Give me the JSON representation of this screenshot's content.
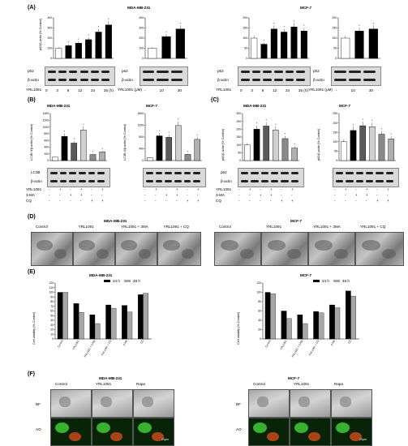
{
  "panels": {
    "A": {
      "letter": "(A)",
      "mda_title": "MDA-MB-231",
      "mcf_title": "MCF-7",
      "ylabel": "p62/β-actin (% Control)",
      "time_row_label": "YRL1091",
      "dose_row_label": "YRL1091 (μM)",
      "time_ticks": [
        "0",
        "3",
        "6",
        "12",
        "24",
        "36 (h)"
      ],
      "dose_ticks": [
        "-",
        "10",
        "30"
      ],
      "blot_p62": "p62",
      "blot_actin": "β-actin"
    },
    "B": {
      "letter": "(B)",
      "mda_title": "MDA-MB-231",
      "mcf_title": "MCF-7",
      "ylabel": "LC3B II/β-actin (% Control)",
      "blot_lc3": "LC3B",
      "blot_actin": "β-actin",
      "row_labels": [
        "YRL1091",
        "3-MA",
        "CQ"
      ],
      "signs": [
        [
          "-",
          "+",
          "-",
          "+",
          "-",
          "+"
        ],
        [
          "-",
          "-",
          "+",
          "+",
          "-",
          "-"
        ],
        [
          "-",
          "-",
          "-",
          "-",
          "+",
          "+"
        ]
      ]
    },
    "C": {
      "letter": "(C)",
      "mda_title": "MDA-MB-231",
      "mcf_title": "MCF-7",
      "ylabel": "p62/β-actin (% Control)",
      "blot_p62": "p62",
      "blot_actin": "β-actin",
      "row_labels": [
        "YRL1091",
        "3-MA",
        "CQ"
      ],
      "signs": [
        [
          "-",
          "+",
          "-",
          "+",
          "-",
          "+"
        ],
        [
          "-",
          "-",
          "+",
          "+",
          "-",
          "-"
        ],
        [
          "-",
          "-",
          "-",
          "-",
          "+",
          "+"
        ]
      ]
    },
    "D": {
      "letter": "(D)",
      "mda_title": "MDA-MB-231",
      "mcf_title": "MCF-7",
      "labels": [
        "Control",
        "YRL1091",
        "YRL1091 + 3MA",
        "YRL1091 + CQ"
      ]
    },
    "E": {
      "letter": "(E)",
      "mda_title": "MDA-MB-231",
      "mcf_title": "MCF-7",
      "ylabel": "Cell viability (% Control)",
      "legend": [
        "24 h",
        "48 h"
      ],
      "categories": [
        "Control",
        "YRL1091",
        "YRL1091 + 3-MA",
        "YRL1091 + CQ",
        "3-MA",
        "CQ"
      ]
    },
    "F": {
      "letter": "(F)",
      "mda_title": "MDA-MB-231",
      "mcf_title": "MCF-7",
      "col_labels": [
        "Control",
        "YRL1091",
        "Rapa"
      ],
      "row_labels": [
        "BF",
        "AO"
      ],
      "scale_label": "20μm"
    }
  },
  "chart_data": [
    {
      "id": "A-mda-time",
      "type": "bar",
      "categories": [
        "0",
        "3",
        "6",
        "12",
        "24",
        "36 (h)"
      ],
      "values": [
        100,
        125,
        150,
        185,
        260,
        330
      ],
      "ylim": [
        0,
        400
      ],
      "yticks": [
        0,
        100,
        200,
        300,
        400
      ],
      "sig": "*"
    },
    {
      "id": "A-mda-dose",
      "type": "bar",
      "categories": [
        "-",
        "10",
        "30"
      ],
      "values": [
        100,
        215,
        290
      ],
      "ylim": [
        0,
        400
      ],
      "yticks": [
        0,
        100,
        200,
        300,
        400
      ],
      "sig": "*"
    },
    {
      "id": "A-mcf-time",
      "type": "bar",
      "categories": [
        "0",
        "3",
        "6",
        "12",
        "24",
        "36 (h)"
      ],
      "values": [
        100,
        70,
        145,
        130,
        155,
        135
      ],
      "ylim": [
        0,
        200
      ],
      "yticks": [
        0,
        50,
        100,
        150,
        200
      ],
      "sig": "*"
    },
    {
      "id": "A-mcf-dose",
      "type": "bar",
      "categories": [
        "-",
        "10",
        "30"
      ],
      "values": [
        100,
        135,
        145
      ],
      "ylim": [
        0,
        200
      ],
      "yticks": [
        0,
        50,
        100,
        150,
        200
      ],
      "sig": "*"
    },
    {
      "id": "B-mda",
      "type": "bar",
      "categories": [
        "1",
        "2",
        "3",
        "4",
        "5",
        "6"
      ],
      "values": [
        100,
        720,
        520,
        910,
        180,
        260
      ],
      "ylim": [
        0,
        1400
      ],
      "yticks": [
        0,
        200,
        400,
        600,
        800,
        1000,
        1200,
        1400
      ],
      "sig": "*"
    },
    {
      "id": "B-mcf",
      "type": "bar",
      "categories": [
        "1",
        "2",
        "3",
        "4",
        "5",
        "6"
      ],
      "values": [
        100,
        840,
        790,
        1190,
        210,
        720
      ],
      "ylim": [
        0,
        1600
      ],
      "yticks": [
        0,
        400,
        800,
        1200,
        1600
      ],
      "sig": "*"
    },
    {
      "id": "C-mda",
      "type": "bar",
      "categories": [
        "1",
        "2",
        "3",
        "4",
        "5",
        "6"
      ],
      "values": [
        100,
        200,
        220,
        195,
        140,
        80
      ],
      "ylim": [
        0,
        300
      ],
      "yticks": [
        0,
        50,
        100,
        150,
        200,
        250,
        300
      ],
      "sig": "*"
    },
    {
      "id": "C-mcf",
      "type": "bar",
      "categories": [
        "1",
        "2",
        "3",
        "4",
        "5",
        "6"
      ],
      "values": [
        100,
        160,
        185,
        180,
        140,
        115
      ],
      "ylim": [
        0,
        250
      ],
      "yticks": [
        0,
        50,
        100,
        150,
        200,
        250
      ],
      "sig": "*"
    },
    {
      "id": "E-mda",
      "type": "bar",
      "categories": [
        "Control",
        "YRL1091",
        "YRL1091 + 3-MA",
        "YRL1091 + CQ",
        "3-MA",
        "CQ"
      ],
      "series": [
        {
          "name": "24 h",
          "values": [
            100,
            76,
            52,
            73,
            72,
            95
          ]
        },
        {
          "name": "48 h",
          "values": [
            100,
            57,
            33,
            66,
            58,
            98
          ]
        }
      ],
      "ylim": [
        0,
        120
      ],
      "yticks": [
        0,
        10,
        20,
        30,
        40,
        50,
        60,
        70,
        80,
        90,
        100,
        110,
        120
      ]
    },
    {
      "id": "E-mcf",
      "type": "bar",
      "categories": [
        "Control",
        "YRL1091",
        "YRL1091 + 3-MA",
        "YRL1091 + CQ",
        "3-MA",
        "CQ"
      ],
      "series": [
        {
          "name": "24 h",
          "values": [
            100,
            60,
            52,
            59,
            73,
            103
          ]
        },
        {
          "name": "48 h",
          "values": [
            97,
            44,
            33,
            56,
            67,
            92
          ]
        }
      ],
      "ylim": [
        0,
        120
      ],
      "yticks": [
        0,
        20,
        40,
        60,
        80,
        100,
        120
      ]
    }
  ],
  "colors": {
    "black": "#000000",
    "dark_gray": "#5a5a5a",
    "mid_gray": "#8a8a8a",
    "light_gray": "#d0d0d0",
    "white": "#ffffff",
    "e_series_24h": "#000000",
    "e_series_48h": "#a6a6a6"
  }
}
